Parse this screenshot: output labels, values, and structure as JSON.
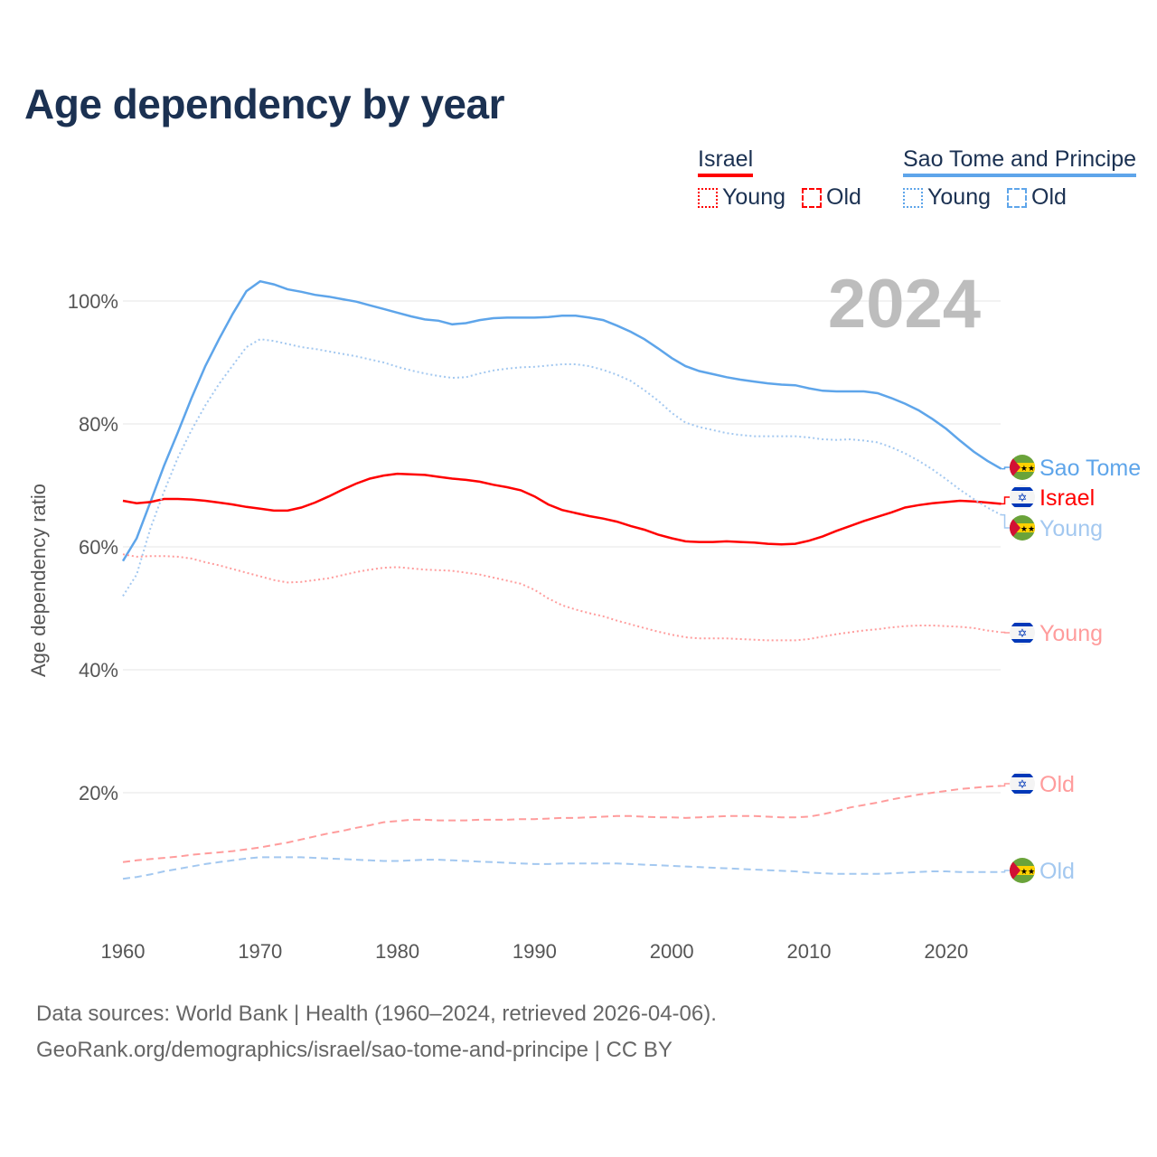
{
  "title": "Age dependency by year",
  "legend": {
    "groups": [
      {
        "name": "Israel",
        "color": "#ff0000",
        "items": [
          "Young",
          "Old"
        ]
      },
      {
        "name": "Sao Tome and Principe",
        "color": "#5ea5ea",
        "items": [
          "Young",
          "Old"
        ]
      }
    ]
  },
  "year_watermark": "2024",
  "footer": {
    "line1": "Data sources: World Bank | Health (1960–2024, retrieved 2026-04-06).",
    "line2": "GeoRank.org/demographics/israel/sao-tome-and-principe | CC BY"
  },
  "chart_data": {
    "type": "line",
    "title": "Age dependency by year",
    "xlabel": "",
    "ylabel": "Age dependency ratio",
    "xlim": [
      1960,
      2024
    ],
    "ylim": [
      0,
      105
    ],
    "x_ticks": [
      "1960",
      "1970",
      "1980",
      "1990",
      "2000",
      "2010",
      "2020"
    ],
    "y_ticks": [
      "20%",
      "40%",
      "60%",
      "80%",
      "100%"
    ],
    "y_tick_values": [
      20,
      40,
      60,
      80,
      100
    ],
    "grid": true,
    "x_start": 1960,
    "series": [
      {
        "name": "Sao Tome and Principe",
        "label": "Sao Tome",
        "style": "solid",
        "color": "#5ea5ea",
        "flag": "sao-tome",
        "values": [
          57.7,
          61.4,
          67.3,
          73.2,
          78.6,
          84.2,
          89.4,
          93.8,
          97.9,
          101.6,
          103.2,
          102.7,
          101.9,
          101.5,
          101.0,
          100.7,
          100.3,
          99.9,
          99.3,
          98.7,
          98.1,
          97.5,
          97.0,
          96.8,
          96.2,
          96.4,
          96.9,
          97.2,
          97.3,
          97.3,
          97.3,
          97.4,
          97.6,
          97.6,
          97.3,
          96.9,
          96.0,
          95.0,
          93.8,
          92.3,
          90.7,
          89.4,
          88.6,
          88.1,
          87.6,
          87.2,
          86.9,
          86.6,
          86.4,
          86.3,
          85.8,
          85.4,
          85.3,
          85.3,
          85.3,
          85.0,
          84.2,
          83.3,
          82.2,
          80.8,
          79.2,
          77.3,
          75.5,
          74.0,
          72.7
        ]
      },
      {
        "name": "Israel",
        "label": "Israel",
        "style": "solid",
        "color": "#ff0000",
        "flag": "israel",
        "values": [
          67.5,
          67.1,
          67.3,
          67.8,
          67.8,
          67.7,
          67.5,
          67.2,
          66.9,
          66.5,
          66.2,
          65.9,
          65.9,
          66.4,
          67.2,
          68.2,
          69.3,
          70.3,
          71.1,
          71.6,
          71.9,
          71.8,
          71.7,
          71.4,
          71.1,
          70.9,
          70.6,
          70.1,
          69.7,
          69.2,
          68.2,
          66.9,
          66.0,
          65.5,
          65.0,
          64.6,
          64.1,
          63.4,
          62.8,
          62.0,
          61.4,
          60.9,
          60.8,
          60.8,
          60.9,
          60.8,
          60.7,
          60.5,
          60.4,
          60.5,
          61.0,
          61.7,
          62.6,
          63.4,
          64.2,
          64.9,
          65.6,
          66.4,
          66.8,
          67.1,
          67.3,
          67.5,
          67.4,
          67.2,
          67.0
        ]
      },
      {
        "name": "Sao Tome and Principe – Young",
        "label": "Young",
        "style": "dotted",
        "color": "#a3c8f0",
        "flag": "sao-tome",
        "values": [
          52.0,
          55.5,
          63.0,
          69.0,
          74.5,
          79.0,
          83.0,
          86.5,
          89.5,
          92.5,
          93.8,
          93.5,
          93.0,
          92.5,
          92.2,
          91.8,
          91.4,
          91.0,
          90.5,
          90.0,
          89.3,
          88.7,
          88.2,
          87.8,
          87.5,
          87.6,
          88.2,
          88.7,
          89.0,
          89.2,
          89.3,
          89.5,
          89.7,
          89.7,
          89.4,
          88.8,
          88.0,
          87.0,
          85.5,
          83.8,
          81.8,
          80.2,
          79.5,
          79.0,
          78.5,
          78.2,
          78.0,
          78.0,
          78.0,
          78.0,
          77.8,
          77.5,
          77.4,
          77.5,
          77.3,
          77.0,
          76.2,
          75.2,
          74.0,
          72.6,
          71.0,
          69.3,
          67.8,
          66.4,
          65.2
        ]
      },
      {
        "name": "Israel – Young",
        "label": "Young",
        "style": "dotted",
        "color": "#ff9c9c",
        "flag": "israel",
        "values": [
          58.8,
          58.4,
          58.5,
          58.5,
          58.4,
          58.1,
          57.5,
          57.0,
          56.4,
          55.8,
          55.2,
          54.6,
          54.2,
          54.3,
          54.6,
          54.9,
          55.4,
          55.9,
          56.3,
          56.6,
          56.7,
          56.5,
          56.3,
          56.2,
          56.1,
          55.8,
          55.5,
          55.0,
          54.5,
          54.0,
          53.0,
          51.6,
          50.5,
          49.8,
          49.2,
          48.7,
          48.0,
          47.4,
          46.8,
          46.2,
          45.7,
          45.3,
          45.1,
          45.1,
          45.1,
          45.0,
          44.9,
          44.8,
          44.8,
          44.8,
          45.0,
          45.4,
          45.8,
          46.1,
          46.4,
          46.6,
          46.9,
          47.1,
          47.2,
          47.2,
          47.1,
          47.0,
          46.8,
          46.4,
          46.1
        ]
      },
      {
        "name": "Israel – Old",
        "label": "Old",
        "style": "dashed",
        "color": "#ff9c9c",
        "flag": "israel",
        "values": [
          8.7,
          9.0,
          9.2,
          9.4,
          9.6,
          9.9,
          10.1,
          10.3,
          10.5,
          10.8,
          11.1,
          11.5,
          11.9,
          12.4,
          12.9,
          13.4,
          13.8,
          14.3,
          14.7,
          15.2,
          15.4,
          15.6,
          15.6,
          15.5,
          15.5,
          15.5,
          15.6,
          15.6,
          15.6,
          15.7,
          15.7,
          15.8,
          15.9,
          15.9,
          16.0,
          16.1,
          16.2,
          16.2,
          16.1,
          16.0,
          16.0,
          15.9,
          16.0,
          16.1,
          16.2,
          16.2,
          16.2,
          16.1,
          16.0,
          16.0,
          16.1,
          16.5,
          17.0,
          17.6,
          18.0,
          18.4,
          18.9,
          19.3,
          19.7,
          20.0,
          20.3,
          20.6,
          20.8,
          21.0,
          21.1
        ]
      },
      {
        "name": "Sao Tome and Principe – Old",
        "label": "Old",
        "style": "dashed",
        "color": "#a3c8f0",
        "flag": "sao-tome",
        "values": [
          6.0,
          6.3,
          6.7,
          7.2,
          7.6,
          8.0,
          8.4,
          8.7,
          9.0,
          9.3,
          9.5,
          9.5,
          9.5,
          9.5,
          9.4,
          9.3,
          9.2,
          9.1,
          9.0,
          8.9,
          8.9,
          9.0,
          9.1,
          9.1,
          9.0,
          8.9,
          8.8,
          8.7,
          8.6,
          8.5,
          8.4,
          8.4,
          8.5,
          8.5,
          8.5,
          8.5,
          8.5,
          8.4,
          8.3,
          8.2,
          8.1,
          8.0,
          7.9,
          7.8,
          7.7,
          7.6,
          7.5,
          7.4,
          7.3,
          7.2,
          7.0,
          6.9,
          6.8,
          6.8,
          6.8,
          6.8,
          6.9,
          7.0,
          7.1,
          7.2,
          7.2,
          7.1,
          7.1,
          7.1,
          7.1
        ]
      }
    ]
  }
}
